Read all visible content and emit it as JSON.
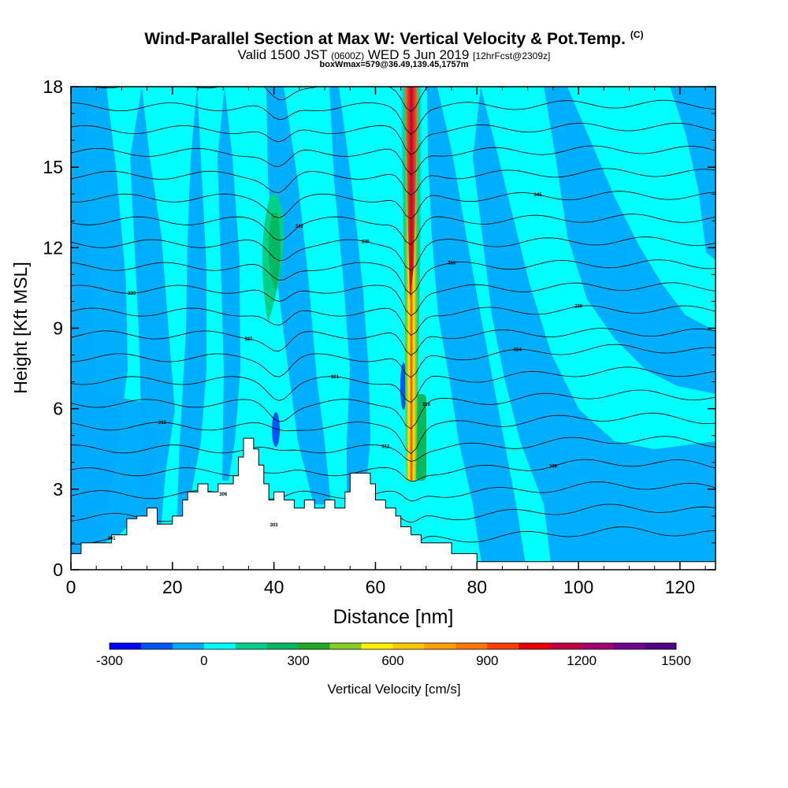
{
  "header": {
    "title": "Wind-Parallel Section at Max W: Vertical Velocity & Pot.Temp.",
    "title_mark": "(C)",
    "valid_prefix": "Valid 1500 JST",
    "valid_utc": "(0600Z)",
    "valid_date": "WED 5 Jun 2019",
    "forecast": "[12hrFcst@2309z]",
    "box_info": "boxWmax=579@36.49,139.45,1757m"
  },
  "chart_data": {
    "type": "heatmap",
    "xlabel": "Distance [nm]",
    "ylabel": "Height [Kft MSL]",
    "xlim": [
      0,
      127
    ],
    "ylim": [
      0,
      18
    ],
    "x_ticks": [
      "0",
      "20",
      "40",
      "60",
      "80",
      "100",
      "120"
    ],
    "y_ticks": [
      "0",
      "3",
      "6",
      "9",
      "12",
      "15",
      "18"
    ],
    "colorbar": {
      "label": "Vertical Velocity [cm/s]",
      "min": -300,
      "max": 1500,
      "step": 100,
      "tick_labels": [
        "-300",
        "0",
        "300",
        "600",
        "900",
        "1200",
        "1500"
      ],
      "colors": [
        "#0000ff",
        "#0055ff",
        "#00aaff",
        "#00ffff",
        "#00d08a",
        "#00b860",
        "#22aa22",
        "#88cc22",
        "#ffee00",
        "#ffc800",
        "#ffa000",
        "#ff7800",
        "#ff4000",
        "#e80000",
        "#c00040",
        "#a00070",
        "#700090",
        "#500088"
      ]
    },
    "terrain_kft": [
      [
        0,
        0.6
      ],
      [
        2,
        0.6
      ],
      [
        2,
        1
      ],
      [
        8,
        1
      ],
      [
        8,
        1.3
      ],
      [
        11,
        1.3
      ],
      [
        11,
        1.9
      ],
      [
        13,
        1.9
      ],
      [
        13,
        2
      ],
      [
        15,
        2
      ],
      [
        15,
        2.3
      ],
      [
        17,
        2.3
      ],
      [
        17,
        1.7
      ],
      [
        20,
        1.7
      ],
      [
        20,
        2
      ],
      [
        22,
        2
      ],
      [
        22,
        2.6
      ],
      [
        23,
        2.6
      ],
      [
        23,
        2.9
      ],
      [
        25,
        2.9
      ],
      [
        25,
        3.2
      ],
      [
        27,
        3.2
      ],
      [
        27,
        2.9
      ],
      [
        29,
        2.9
      ],
      [
        29,
        3.2
      ],
      [
        32,
        3.2
      ],
      [
        32,
        3.5
      ],
      [
        33,
        3.5
      ],
      [
        33,
        4.2
      ],
      [
        34,
        4.2
      ],
      [
        34,
        4.9
      ],
      [
        36,
        4.9
      ],
      [
        36,
        4.5
      ],
      [
        37,
        4.5
      ],
      [
        37,
        3.9
      ],
      [
        38,
        3.9
      ],
      [
        38,
        3.2
      ],
      [
        39,
        3.2
      ],
      [
        39,
        2.6
      ],
      [
        40,
        2.6
      ],
      [
        40,
        2.9
      ],
      [
        42,
        2.9
      ],
      [
        42,
        2.6
      ],
      [
        44,
        2.6
      ],
      [
        44,
        2.3
      ],
      [
        46,
        2.3
      ],
      [
        46,
        2.6
      ],
      [
        48,
        2.6
      ],
      [
        48,
        2.3
      ],
      [
        50,
        2.3
      ],
      [
        50,
        2.6
      ],
      [
        52,
        2.6
      ],
      [
        52,
        2.3
      ],
      [
        54,
        2.3
      ],
      [
        54,
        2.9
      ],
      [
        55,
        2.9
      ],
      [
        55,
        3.6
      ],
      [
        59,
        3.6
      ],
      [
        59,
        3.2
      ],
      [
        60,
        3.2
      ],
      [
        60,
        2.6
      ],
      [
        62,
        2.6
      ],
      [
        62,
        2.3
      ],
      [
        64,
        2.3
      ],
      [
        64,
        2
      ],
      [
        65,
        2
      ],
      [
        65,
        1.6
      ],
      [
        67,
        1.6
      ],
      [
        67,
        1.3
      ],
      [
        69,
        1.3
      ],
      [
        69,
        1
      ],
      [
        75,
        1
      ],
      [
        75,
        0.6
      ],
      [
        80,
        0.6
      ],
      [
        80,
        0.3
      ],
      [
        127,
        0.3
      ]
    ],
    "contour_labels": [
      "301",
      "303",
      "306",
      "309",
      "312",
      "315",
      "318",
      "321",
      "324",
      "327",
      "330",
      "333",
      "336",
      "339",
      "342",
      "345"
    ]
  }
}
